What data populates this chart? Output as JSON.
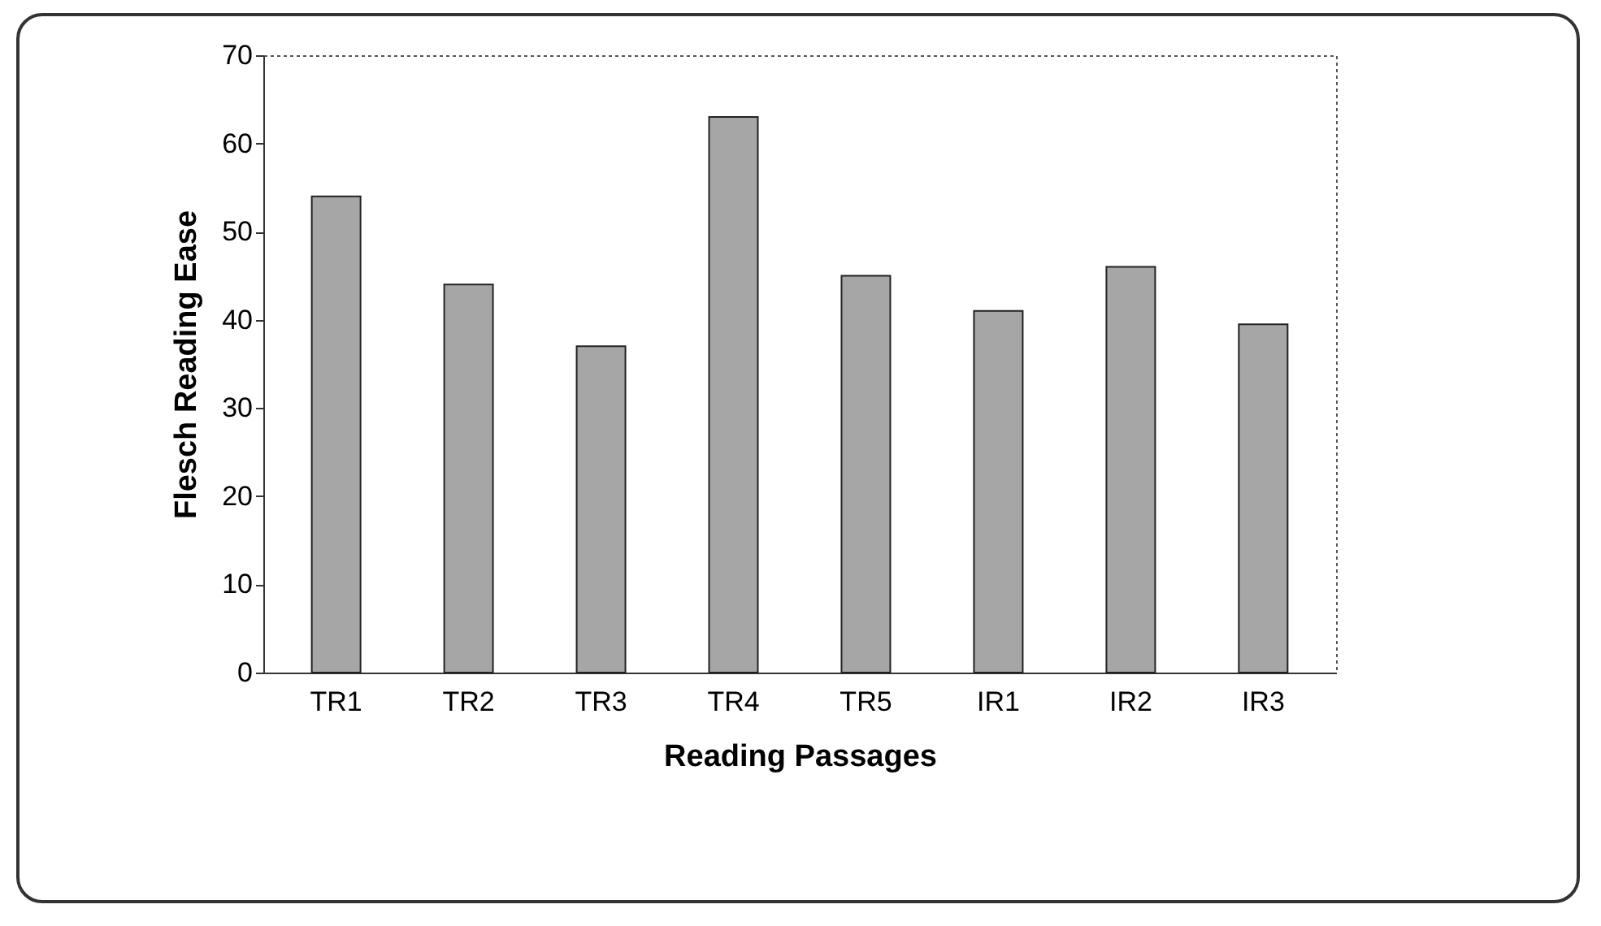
{
  "chart_data": {
    "type": "bar",
    "xlabel": "Reading Passages",
    "ylabel": "Flesch Reading Ease",
    "categories": [
      "TR1",
      "TR2",
      "TR3",
      "TR4",
      "TR5",
      "IR1",
      "IR2",
      "IR3"
    ],
    "values": [
      54,
      44,
      37,
      63,
      45,
      41,
      46,
      39.5
    ],
    "color": "#a6a6a6",
    "ylim": [
      0,
      70
    ],
    "yticks": [
      0,
      10,
      20,
      30,
      40,
      50,
      60,
      70
    ],
    "grid": false
  }
}
